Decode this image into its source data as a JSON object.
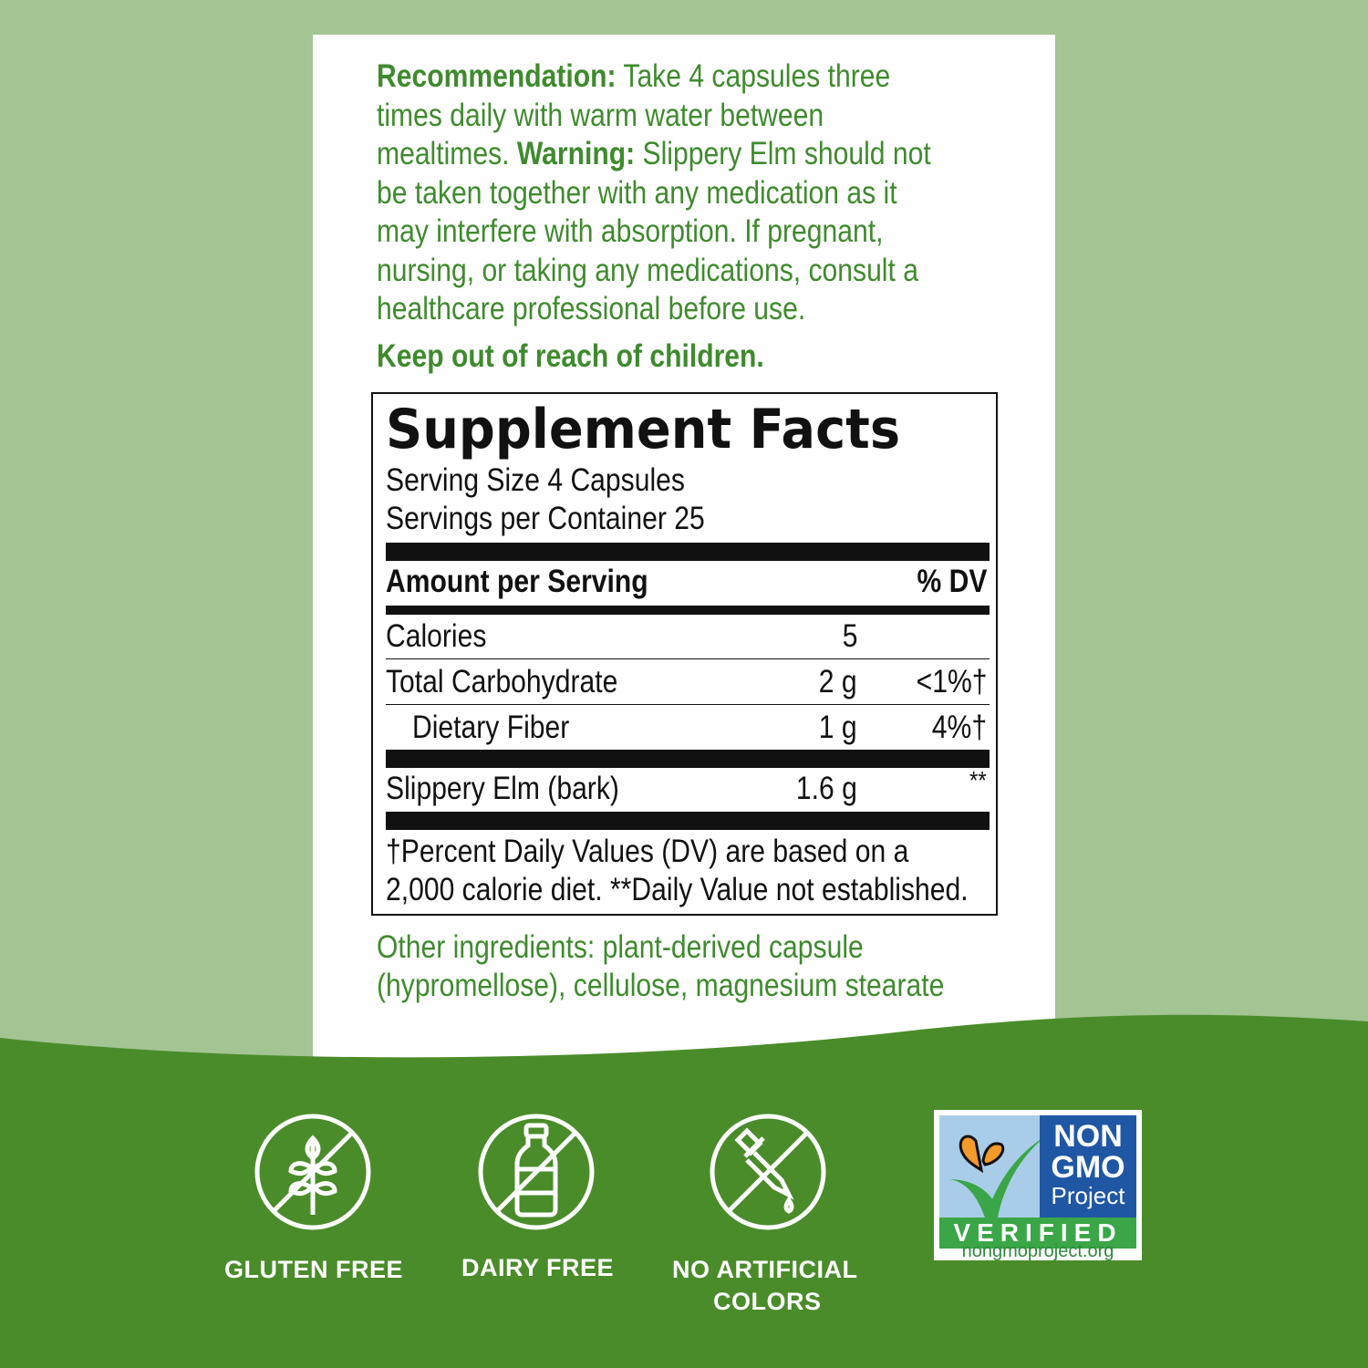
{
  "colors": {
    "background": "#a3c493",
    "band": "#4a8c2a",
    "text_green": "#3f8a2e"
  },
  "directions": {
    "lines": [
      [
        {
          "b": "Recommendation:"
        },
        {
          "t": " Take 4 capsules three"
        }
      ],
      [
        {
          "t": "times daily with warm water between"
        }
      ],
      [
        {
          "t": "mealtimes. "
        },
        {
          "b": "Warning:"
        },
        {
          "t": " Slippery Elm should not"
        }
      ],
      [
        {
          "t": "be taken together with any medication as it"
        }
      ],
      [
        {
          "t": "may interfere with absorption. If pregnant,"
        }
      ],
      [
        {
          "t": "nursing, or taking any medications, consult a"
        }
      ],
      [
        {
          "t": "healthcare professional before use."
        }
      ]
    ],
    "keep_out": "Keep out of reach of children."
  },
  "facts": {
    "title": "Supplement Facts",
    "serving_size": "Serving Size 4 Capsules",
    "servings_per_container": "Servings per Container 25",
    "header_amount": "Amount per Serving",
    "header_dv": "% DV",
    "rows": [
      {
        "name": "Calories",
        "amount": "5",
        "dv": ""
      },
      {
        "name": "Total Carbohydrate",
        "amount": "2 g",
        "dv": "<1%†"
      },
      {
        "name": "Dietary Fiber",
        "amount": "1 g",
        "dv": "4%†"
      },
      {
        "name": "Slippery Elm (bark)",
        "amount": "1.6 g",
        "dv": "**"
      }
    ],
    "footnote_1": "†Percent Daily Values (DV) are based on a",
    "footnote_2": "2,000 calorie diet. **Daily Value not established."
  },
  "other_ingredients": {
    "line1": "Other ingredients: plant-derived capsule",
    "line2": "(hypromellose), cellulose, magnesium stearate"
  },
  "badges": [
    {
      "icon": "no-wheat-icon",
      "label": "GLUTEN FREE"
    },
    {
      "icon": "no-milk-bottle-icon",
      "label": "DAIRY FREE"
    },
    {
      "icon": "no-dropper-icon",
      "label_1": "NO ARTIFICIAL",
      "label_2": "COLORS"
    }
  ],
  "non_gmo": {
    "line1": "NON",
    "line2": "GMO",
    "line3": "Project",
    "verified": "VERIFIED",
    "url": "nongmoproject.org"
  }
}
